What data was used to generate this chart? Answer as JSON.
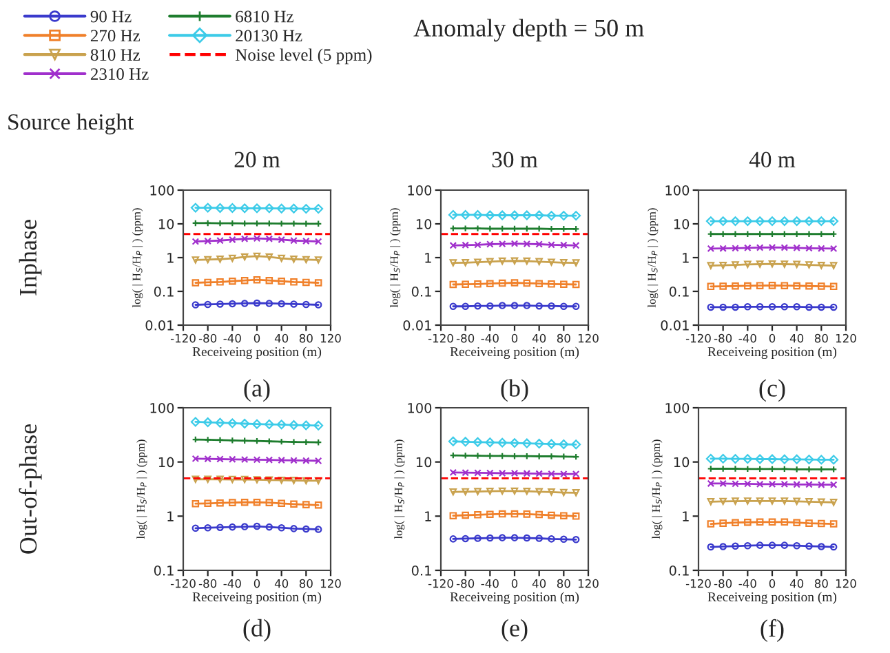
{
  "chart_data": [
    {
      "type": "line",
      "title": "20 m",
      "xlabel": "Receiveing position (m)",
      "ylabel": "log( | H$_{S}$/H$_{P}$ | ) (ppm)",
      "log": "y",
      "xlim": [
        -120,
        120
      ],
      "xticks": [
        -120,
        -80,
        -40,
        0,
        40,
        80,
        120
      ],
      "ylim": [
        0.01,
        100
      ],
      "yticks": [
        0.01,
        0.1,
        1,
        10,
        100
      ],
      "legend": "top left",
      "line_style": "solid",
      "grid": false,
      "annotations": [
        "(a)",
        "Inphase",
        "Source height",
        "Anomaly depth = 50 m"
      ],
      "x": [
        -100,
        -80,
        -60,
        -40,
        -20,
        0,
        20,
        40,
        60,
        80,
        100
      ],
      "series": [
        {
          "name": "90 Hz",
          "color": "#3a3acc",
          "marker": "circle",
          "values": [
            0.04,
            0.041,
            0.042,
            0.043,
            0.044,
            0.045,
            0.044,
            0.043,
            0.042,
            0.041,
            0.04
          ]
        },
        {
          "name": "270 Hz",
          "color": "#f0802a",
          "marker": "square",
          "values": [
            0.18,
            0.185,
            0.19,
            0.2,
            0.21,
            0.22,
            0.21,
            0.2,
            0.19,
            0.185,
            0.18
          ]
        },
        {
          "name": "810 Hz",
          "color": "#c9a24e",
          "marker": "triangle",
          "values": [
            0.85,
            0.87,
            0.9,
            0.95,
            1.05,
            1.1,
            1.05,
            0.95,
            0.9,
            0.87,
            0.85
          ]
        },
        {
          "name": "2310 Hz",
          "color": "#a030cc",
          "marker": "cross",
          "values": [
            3.0,
            3.1,
            3.2,
            3.4,
            3.6,
            3.7,
            3.6,
            3.4,
            3.2,
            3.1,
            3.0
          ]
        },
        {
          "name": "6810 Hz",
          "color": "#1e7d2e",
          "marker": "plus",
          "values": [
            10.5,
            10.5,
            10.4,
            10.4,
            10.3,
            10.3,
            10.3,
            10.2,
            10.2,
            10.1,
            10.1
          ]
        },
        {
          "name": "20130 Hz",
          "color": "#3ccbe8",
          "marker": "diamond",
          "values": [
            30,
            30,
            29.5,
            29.5,
            29,
            29,
            29,
            28.5,
            28.5,
            28,
            28
          ]
        }
      ],
      "ref_lines": [
        {
          "axis": "y",
          "value": 5,
          "label": "Noise level (5 ppm)",
          "color": "#ff0000",
          "line_style": "dashed"
        }
      ]
    },
    {
      "type": "line",
      "title": "30 m",
      "xlabel": "Receiveing position (m)",
      "ylabel": "log( | H$_{S}$/H$_{P}$ | ) (ppm)",
      "log": "y",
      "xlim": [
        -120,
        120
      ],
      "xticks": [
        -120,
        -80,
        -40,
        0,
        40,
        80,
        120
      ],
      "ylim": [
        0.01,
        100
      ],
      "yticks": [
        0.01,
        0.1,
        1,
        10,
        100
      ],
      "line_style": "solid",
      "grid": false,
      "annotations": [
        "(b)"
      ],
      "x": [
        -100,
        -80,
        -60,
        -40,
        -20,
        0,
        20,
        40,
        60,
        80,
        100
      ],
      "series": [
        {
          "color": "#3a3acc",
          "marker": "circle",
          "values": [
            0.036,
            0.036,
            0.037,
            0.037,
            0.038,
            0.038,
            0.038,
            0.037,
            0.037,
            0.036,
            0.036
          ]
        },
        {
          "color": "#f0802a",
          "marker": "square",
          "values": [
            0.16,
            0.162,
            0.165,
            0.17,
            0.175,
            0.18,
            0.175,
            0.17,
            0.165,
            0.162,
            0.16
          ]
        },
        {
          "color": "#c9a24e",
          "marker": "triangle",
          "values": [
            0.7,
            0.71,
            0.73,
            0.76,
            0.79,
            0.8,
            0.79,
            0.76,
            0.73,
            0.71,
            0.7
          ]
        },
        {
          "color": "#a030cc",
          "marker": "cross",
          "values": [
            2.3,
            2.35,
            2.4,
            2.5,
            2.55,
            2.6,
            2.55,
            2.5,
            2.4,
            2.35,
            2.3
          ]
        },
        {
          "color": "#1e7d2e",
          "marker": "plus",
          "values": [
            7.3,
            7.3,
            7.3,
            7.2,
            7.2,
            7.2,
            7.2,
            7.2,
            7.1,
            7.1,
            7.1
          ]
        },
        {
          "color": "#3ccbe8",
          "marker": "diamond",
          "values": [
            18.5,
            18.5,
            18.5,
            18,
            18,
            18,
            18,
            18,
            17.5,
            17.5,
            17.5
          ]
        }
      ],
      "ref_lines": [
        {
          "axis": "y",
          "value": 5,
          "color": "#ff0000",
          "line_style": "dashed"
        }
      ]
    },
    {
      "type": "line",
      "title": "40 m",
      "xlabel": "Receiveing position (m)",
      "ylabel": "log( | H$_{S}$/H$_{P}$ | ) (ppm)",
      "log": "y",
      "xlim": [
        -120,
        120
      ],
      "xticks": [
        -120,
        -80,
        -40,
        0,
        40,
        80,
        120
      ],
      "ylim": [
        0.01,
        100
      ],
      "yticks": [
        0.01,
        0.1,
        1,
        10,
        100
      ],
      "line_style": "solid",
      "grid": false,
      "annotations": [
        "(c)"
      ],
      "x": [
        -100,
        -80,
        -60,
        -40,
        -20,
        0,
        20,
        40,
        60,
        80,
        100
      ],
      "series": [
        {
          "color": "#3a3acc",
          "marker": "circle",
          "values": [
            0.034,
            0.034,
            0.034,
            0.035,
            0.035,
            0.035,
            0.035,
            0.035,
            0.034,
            0.034,
            0.034
          ]
        },
        {
          "color": "#f0802a",
          "marker": "square",
          "values": [
            0.14,
            0.142,
            0.144,
            0.146,
            0.148,
            0.15,
            0.148,
            0.146,
            0.144,
            0.142,
            0.14
          ]
        },
        {
          "color": "#c9a24e",
          "marker": "triangle",
          "values": [
            0.58,
            0.59,
            0.61,
            0.63,
            0.64,
            0.65,
            0.64,
            0.63,
            0.61,
            0.59,
            0.58
          ]
        },
        {
          "color": "#a030cc",
          "marker": "cross",
          "values": [
            1.85,
            1.87,
            1.9,
            1.95,
            1.98,
            2.0,
            1.98,
            1.95,
            1.9,
            1.87,
            1.85
          ]
        },
        {
          "color": "#1e7d2e",
          "marker": "plus",
          "values": [
            5.0,
            5.0,
            5.0,
            5.0,
            5.0,
            5.0,
            5.0,
            5.0,
            5.0,
            5.0,
            5.0
          ]
        },
        {
          "color": "#3ccbe8",
          "marker": "diamond",
          "values": [
            12,
            12,
            12,
            12,
            12,
            12,
            12,
            12,
            12,
            12,
            12
          ]
        }
      ]
    },
    {
      "type": "line",
      "xlabel": "Receiveing position (m)",
      "ylabel": "log( | H$_{S}$/H$_{P}$ | ) (ppm)",
      "log": "y",
      "xlim": [
        -120,
        120
      ],
      "xticks": [
        -120,
        -80,
        -40,
        0,
        40,
        80,
        120
      ],
      "ylim": [
        0.1,
        100
      ],
      "yticks": [
        0.1,
        1,
        10,
        100
      ],
      "line_style": "solid",
      "grid": false,
      "annotations": [
        "(d)",
        "Out-of-phase"
      ],
      "x": [
        -100,
        -80,
        -60,
        -40,
        -20,
        0,
        20,
        40,
        60,
        80,
        100
      ],
      "series": [
        {
          "color": "#3a3acc",
          "marker": "circle",
          "values": [
            0.6,
            0.61,
            0.62,
            0.63,
            0.64,
            0.65,
            0.63,
            0.61,
            0.59,
            0.58,
            0.57
          ]
        },
        {
          "color": "#f0802a",
          "marker": "square",
          "values": [
            1.7,
            1.72,
            1.75,
            1.78,
            1.8,
            1.8,
            1.78,
            1.72,
            1.67,
            1.63,
            1.6
          ]
        },
        {
          "color": "#c9a24e",
          "marker": "triangle",
          "values": [
            4.8,
            4.8,
            4.8,
            4.75,
            4.75,
            4.7,
            4.65,
            4.6,
            4.55,
            4.5,
            4.5
          ]
        },
        {
          "color": "#a030cc",
          "marker": "cross",
          "values": [
            11.5,
            11.4,
            11.3,
            11.2,
            11.1,
            11,
            10.9,
            10.8,
            10.7,
            10.6,
            10.5
          ]
        },
        {
          "color": "#1e7d2e",
          "marker": "plus",
          "values": [
            26,
            25.7,
            25.4,
            25,
            24.7,
            24.4,
            24,
            23.7,
            23.4,
            23.2,
            23
          ]
        },
        {
          "color": "#3ccbe8",
          "marker": "diamond",
          "values": [
            55,
            54,
            53,
            52,
            51,
            50,
            49.5,
            49,
            48,
            47.5,
            47
          ]
        }
      ],
      "ref_lines": [
        {
          "axis": "y",
          "value": 5,
          "color": "#ff0000",
          "line_style": "dashed"
        }
      ]
    },
    {
      "type": "line",
      "xlabel": "Receiveing position (m)",
      "ylabel": "log( | H$_{S}$/H$_{P}$ | ) (ppm)",
      "log": "y",
      "xlim": [
        -120,
        120
      ],
      "xticks": [
        -120,
        -80,
        -40,
        0,
        40,
        80,
        120
      ],
      "ylim": [
        0.1,
        100
      ],
      "yticks": [
        0.1,
        1,
        10,
        100
      ],
      "line_style": "solid",
      "grid": false,
      "annotations": [
        "(e)"
      ],
      "x": [
        -100,
        -80,
        -60,
        -40,
        -20,
        0,
        20,
        40,
        60,
        80,
        100
      ],
      "series": [
        {
          "color": "#3a3acc",
          "marker": "circle",
          "values": [
            0.38,
            0.385,
            0.39,
            0.395,
            0.4,
            0.4,
            0.395,
            0.39,
            0.38,
            0.375,
            0.37
          ]
        },
        {
          "color": "#f0802a",
          "marker": "square",
          "values": [
            1.02,
            1.04,
            1.06,
            1.08,
            1.1,
            1.1,
            1.09,
            1.07,
            1.04,
            1.02,
            1.0
          ]
        },
        {
          "color": "#c9a24e",
          "marker": "triangle",
          "values": [
            2.8,
            2.82,
            2.85,
            2.88,
            2.9,
            2.9,
            2.88,
            2.83,
            2.78,
            2.73,
            2.7
          ]
        },
        {
          "color": "#a030cc",
          "marker": "cross",
          "values": [
            6.4,
            6.35,
            6.3,
            6.25,
            6.2,
            6.2,
            6.15,
            6.1,
            6.05,
            6.0,
            6.0
          ]
        },
        {
          "color": "#1e7d2e",
          "marker": "plus",
          "values": [
            13.2,
            13.1,
            13,
            12.9,
            12.9,
            12.8,
            12.8,
            12.7,
            12.7,
            12.6,
            12.5
          ]
        },
        {
          "color": "#3ccbe8",
          "marker": "diamond",
          "values": [
            24,
            23.6,
            23.3,
            23,
            22.7,
            22.4,
            22.1,
            21.8,
            21.5,
            21.2,
            21
          ]
        }
      ],
      "ref_lines": [
        {
          "axis": "y",
          "value": 5,
          "color": "#ff0000",
          "line_style": "dashed"
        }
      ]
    },
    {
      "type": "line",
      "xlabel": "Receiveing position (m)",
      "ylabel": "log( | H$_{S}$/H$_{P}$ | ) (ppm)",
      "log": "y",
      "xlim": [
        -120,
        120
      ],
      "xticks": [
        -120,
        -80,
        -40,
        0,
        40,
        80,
        120
      ],
      "ylim": [
        0.1,
        100
      ],
      "yticks": [
        0.1,
        1,
        10,
        100
      ],
      "line_style": "solid",
      "grid": false,
      "annotations": [
        "(f)"
      ],
      "x": [
        -100,
        -80,
        -60,
        -40,
        -20,
        0,
        20,
        40,
        60,
        80,
        100
      ],
      "series": [
        {
          "color": "#3a3acc",
          "marker": "circle",
          "values": [
            0.27,
            0.275,
            0.28,
            0.285,
            0.29,
            0.29,
            0.29,
            0.285,
            0.28,
            0.275,
            0.27
          ]
        },
        {
          "color": "#f0802a",
          "marker": "square",
          "values": [
            0.72,
            0.74,
            0.76,
            0.77,
            0.78,
            0.78,
            0.78,
            0.76,
            0.74,
            0.73,
            0.72
          ]
        },
        {
          "color": "#c9a24e",
          "marker": "triangle",
          "values": [
            1.85,
            1.87,
            1.89,
            1.9,
            1.9,
            1.9,
            1.9,
            1.88,
            1.85,
            1.82,
            1.8
          ]
        },
        {
          "color": "#a030cc",
          "marker": "cross",
          "values": [
            4.0,
            4.0,
            3.95,
            3.95,
            3.9,
            3.9,
            3.9,
            3.85,
            3.85,
            3.8,
            3.8
          ]
        },
        {
          "color": "#1e7d2e",
          "marker": "plus",
          "values": [
            7.5,
            7.5,
            7.5,
            7.4,
            7.4,
            7.4,
            7.4,
            7.3,
            7.3,
            7.3,
            7.3
          ]
        },
        {
          "color": "#3ccbe8",
          "marker": "diamond",
          "values": [
            11.5,
            11.5,
            11.4,
            11.4,
            11.3,
            11.3,
            11.2,
            11.2,
            11.1,
            11,
            11
          ]
        }
      ],
      "ref_lines": [
        {
          "axis": "y",
          "value": 5,
          "color": "#ff0000",
          "line_style": "dashed"
        }
      ]
    }
  ]
}
